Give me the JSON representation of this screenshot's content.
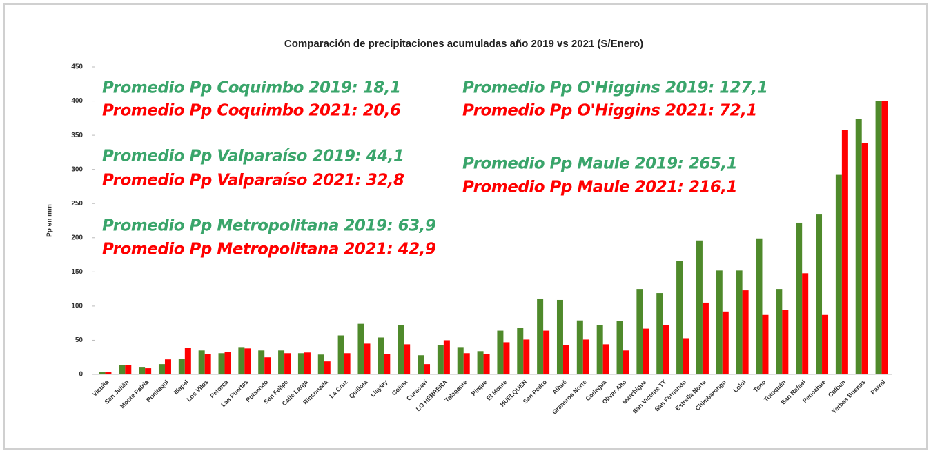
{
  "chart_data": {
    "type": "bar",
    "title": "Comparación de precipitaciones acumuladas año 2019 vs 2021 (S/Enero)",
    "y_label": "Pp en mm",
    "categories": [
      "Vicuña",
      "San Julián",
      "Monte Patria",
      "Punitaqui",
      "Illapel",
      "Los Vilos",
      "Petorca",
      "Las Puertas",
      "Putaendo",
      "San Felipe",
      "Calle Larga",
      "Rinconada",
      "La Cruz",
      "Quillota",
      "Llaylay",
      "Colina",
      "Curacaví",
      "LO HERRERA",
      "Talagante",
      "Pirque",
      "El Monte",
      "HUELQUEN",
      "San Pedro",
      "Alhué",
      "Graneros Norte",
      "Codegua",
      "Olivar Alto",
      "Marchigue",
      "San Vicente TT",
      "San Fernando",
      "Estrella Norte",
      "Chimbarongo",
      "Lolol",
      "Teno",
      "Tutuquén",
      "San Rafael",
      "Pencahue",
      "Colbún",
      "Yerbas Buenas",
      "Parral"
    ],
    "series": [
      {
        "color": "#4f8a2b",
        "values": [
          3,
          14,
          11,
          15,
          23,
          35,
          31,
          40,
          35,
          35,
          31,
          29,
          57,
          74,
          54,
          72,
          28,
          43,
          40,
          34,
          64,
          68,
          111,
          109,
          79,
          72,
          78,
          125,
          119,
          166,
          196,
          152,
          152,
          199,
          125,
          222,
          234,
          292,
          374,
          400
        ]
      },
      {
        "color": "#ff0000",
        "values": [
          3,
          14,
          9,
          22,
          39,
          30,
          33,
          38,
          25,
          31,
          32,
          19,
          31,
          45,
          30,
          44,
          15,
          50,
          31,
          30,
          47,
          51,
          64,
          43,
          51,
          44,
          35,
          67,
          72,
          53,
          105,
          92,
          123,
          87,
          94,
          148,
          87,
          358,
          338,
          400
        ]
      }
    ],
    "ylim": [
      0,
      450
    ],
    "yticks": [
      0,
      50,
      100,
      150,
      200,
      250,
      300,
      350,
      400,
      450
    ],
    "annotations": [
      {
        "text": "Promedio Pp Coquimbo  2019: 18,1",
        "color": "#3aa56b"
      },
      {
        "text": "Promedio Pp Coquimbo  2021: 20,6",
        "color": "#ff0000"
      },
      {
        "text": "Promedio Pp Valparaíso  2019: 44,1",
        "color": "#3aa56b"
      },
      {
        "text": "Promedio Pp Valparaíso  2021: 32,8",
        "color": "#ff0000"
      },
      {
        "text": "Promedio Pp Metropolitana  2019: 63,9",
        "color": "#3aa56b"
      },
      {
        "text": "Promedio Pp Metropolitana  2021: 42,9",
        "color": "#ff0000"
      },
      {
        "text": "Promedio Pp O'Higgins 2019: 127,1",
        "color": "#3aa56b"
      },
      {
        "text": "Promedio Pp O'Higgins 2021: 72,1",
        "color": "#ff0000"
      },
      {
        "text": "Promedio Pp Maule  2019: 265,1",
        "color": "#3aa56b"
      },
      {
        "text": "Promedio Pp Maule  2021: 216,1",
        "color": "#ff0000"
      }
    ]
  }
}
